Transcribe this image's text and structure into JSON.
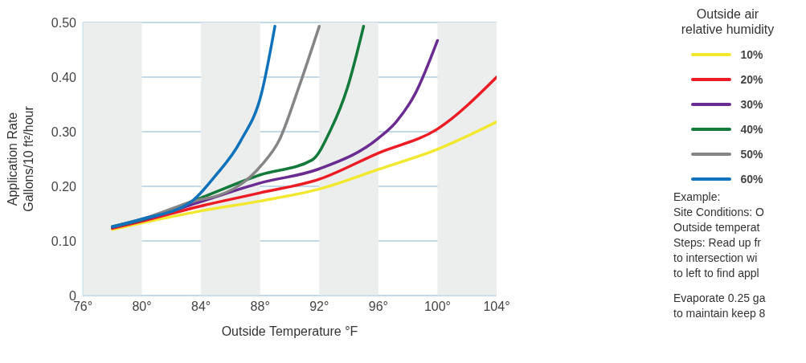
{
  "chart_data": {
    "type": "line",
    "xlabel": "Outside Temperature °F",
    "ylabel": "Application Rate\nGallons/10 ft²/hour",
    "legend_title": "Outside air\nrelative humidity",
    "legend": "right",
    "grid": "y",
    "marker": "none",
    "line_style": "solid",
    "xlim": [
      76,
      104
    ],
    "xticks": [
      {
        "value": 76,
        "label": "76°"
      },
      {
        "value": 80,
        "label": "80°"
      },
      {
        "value": 84,
        "label": "84°"
      },
      {
        "value": 88,
        "label": "88°"
      },
      {
        "value": 92,
        "label": "92°"
      },
      {
        "value": 96,
        "label": "96°"
      },
      {
        "value": 100,
        "label": "100°"
      },
      {
        "value": 104,
        "label": "104°"
      }
    ],
    "ylim": [
      0,
      0.5
    ],
    "yticks": [
      0,
      {
        "value": 0.1,
        "label": "0.10"
      },
      {
        "value": 0.2,
        "label": "0.20"
      },
      {
        "value": 0.3,
        "label": "0.30"
      },
      {
        "value": 0.4,
        "label": "0.40"
      },
      {
        "value": 0.5,
        "label": "0.50"
      }
    ],
    "bands": [
      {
        "axis": "x",
        "from": 76,
        "to": 80,
        "color": "#eceeed"
      },
      {
        "axis": "x",
        "from": 84,
        "to": 88,
        "color": "#eceeed"
      },
      {
        "axis": "x",
        "from": 92,
        "to": 96,
        "color": "#eceeed"
      },
      {
        "axis": "x",
        "from": 100,
        "to": 104,
        "color": "#eceeed"
      }
    ],
    "series": [
      {
        "name": "10%",
        "color": "#f2e830",
        "x": [
          78,
          80,
          84,
          88,
          92,
          96,
          100,
          104
        ],
        "values": [
          0.121,
          0.133,
          0.155,
          0.173,
          0.195,
          0.231,
          0.268,
          0.318
        ]
      },
      {
        "name": "20%",
        "color": "#ed1c24",
        "x": [
          78,
          80,
          84,
          88,
          92,
          96,
          100,
          104
        ],
        "values": [
          0.123,
          0.136,
          0.164,
          0.188,
          0.213,
          0.261,
          0.305,
          0.4
        ]
      },
      {
        "name": "30%",
        "color": "#6a2c91",
        "x": [
          78,
          80,
          84,
          88,
          92,
          96,
          97.2,
          98.5,
          100
        ],
        "values": [
          0.125,
          0.138,
          0.172,
          0.206,
          0.232,
          0.288,
          0.318,
          0.37,
          0.467
        ]
      },
      {
        "name": "40%",
        "color": "#137a3c",
        "x": [
          78,
          80,
          84,
          88,
          91.5,
          92.8,
          93.9,
          95
        ],
        "values": [
          0.126,
          0.139,
          0.179,
          0.221,
          0.248,
          0.305,
          0.38,
          0.493
        ]
      },
      {
        "name": "50%",
        "color": "#858585",
        "x": [
          78,
          80,
          84,
          84.9,
          88.1,
          89.3,
          90.6,
          92
        ],
        "values": [
          0.126,
          0.14,
          0.176,
          0.181,
          0.239,
          0.285,
          0.38,
          0.493
        ]
      },
      {
        "name": "60%",
        "color": "#0f72ba",
        "x": [
          78,
          80,
          83.3,
          84.9,
          86.7,
          88.1,
          89
        ],
        "values": [
          0.126,
          0.14,
          0.171,
          0.217,
          0.284,
          0.371,
          0.493
        ]
      }
    ],
    "annotations": [
      "Example:",
      "Site Conditions: O",
      "Outside temperat",
      "Steps: Read up fr",
      "to intersection wi",
      "to left to find appl",
      "Evaporate 0.25 ga",
      "to maintain keep 8"
    ]
  }
}
